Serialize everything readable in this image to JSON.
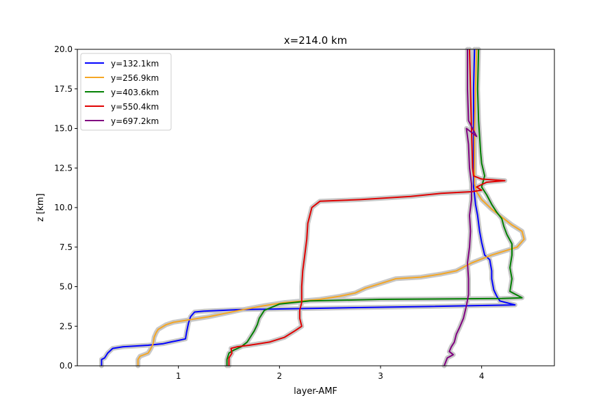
{
  "chart_data": {
    "type": "line",
    "title": "x=214.0 km",
    "xlabel": "layer-AMF",
    "ylabel": "z [km]",
    "xlim": [
      0.0,
      4.72
    ],
    "ylim": [
      0.0,
      20.0
    ],
    "xticks": [
      1,
      2,
      3,
      4
    ],
    "xtick_labels": [
      "1",
      "2",
      "3",
      "4"
    ],
    "yticks": [
      0.0,
      2.5,
      5.0,
      7.5,
      10.0,
      12.5,
      15.0,
      17.5,
      20.0
    ],
    "ytick_labels": [
      "0.0",
      "2.5",
      "5.0",
      "7.5",
      "10.0",
      "12.5",
      "15.0",
      "17.5",
      "20.0"
    ],
    "grid": false,
    "legend_position": "upper-left",
    "uncertainty_band_color": "#c8c8c8",
    "series": [
      {
        "name": "y=132.1km",
        "color": "#0000ff",
        "points": [
          [
            0.24,
            0.0
          ],
          [
            0.24,
            0.4
          ],
          [
            0.27,
            0.5
          ],
          [
            0.3,
            0.8
          ],
          [
            0.35,
            1.1
          ],
          [
            0.45,
            1.2
          ],
          [
            0.7,
            1.3
          ],
          [
            0.85,
            1.4
          ],
          [
            0.92,
            1.5
          ],
          [
            1.0,
            1.6
          ],
          [
            1.07,
            1.7
          ],
          [
            1.08,
            2.1
          ],
          [
            1.1,
            2.7
          ],
          [
            1.12,
            3.1
          ],
          [
            1.16,
            3.4
          ],
          [
            1.25,
            3.45
          ],
          [
            1.6,
            3.55
          ],
          [
            2.5,
            3.65
          ],
          [
            3.5,
            3.75
          ],
          [
            4.33,
            3.85
          ],
          [
            4.18,
            4.1
          ],
          [
            4.15,
            4.4
          ],
          [
            4.12,
            4.8
          ],
          [
            4.1,
            5.5
          ],
          [
            4.1,
            6.0
          ],
          [
            4.08,
            6.7
          ],
          [
            4.03,
            7.0
          ],
          [
            4.0,
            7.8
          ],
          [
            3.98,
            8.5
          ],
          [
            3.96,
            9.5
          ],
          [
            3.94,
            10.2
          ],
          [
            3.93,
            10.8
          ],
          [
            3.92,
            11.3
          ],
          [
            3.92,
            12.5
          ],
          [
            3.92,
            15.0
          ],
          [
            3.92,
            17.5
          ],
          [
            3.93,
            20.0
          ]
        ]
      },
      {
        "name": "y=256.9km",
        "color": "#f5a623",
        "points": [
          [
            0.6,
            0.0
          ],
          [
            0.6,
            0.4
          ],
          [
            0.62,
            0.6
          ],
          [
            0.7,
            0.8
          ],
          [
            0.72,
            1.0
          ],
          [
            0.75,
            1.4
          ],
          [
            0.76,
            1.8
          ],
          [
            0.78,
            2.1
          ],
          [
            0.8,
            2.3
          ],
          [
            0.88,
            2.6
          ],
          [
            0.95,
            2.75
          ],
          [
            1.1,
            2.9
          ],
          [
            1.3,
            3.1
          ],
          [
            1.45,
            3.3
          ],
          [
            1.6,
            3.5
          ],
          [
            1.85,
            3.8
          ],
          [
            2.05,
            4.0
          ],
          [
            2.4,
            4.2
          ],
          [
            2.6,
            4.4
          ],
          [
            2.75,
            4.6
          ],
          [
            2.85,
            4.9
          ],
          [
            3.0,
            5.2
          ],
          [
            3.15,
            5.5
          ],
          [
            3.4,
            5.6
          ],
          [
            3.6,
            5.8
          ],
          [
            3.75,
            6.0
          ],
          [
            3.9,
            6.5
          ],
          [
            4.1,
            7.0
          ],
          [
            4.35,
            7.5
          ],
          [
            4.42,
            8.0
          ],
          [
            4.4,
            8.5
          ],
          [
            4.3,
            8.9
          ],
          [
            4.2,
            9.4
          ],
          [
            4.1,
            9.9
          ],
          [
            4.05,
            10.2
          ],
          [
            4.0,
            10.5
          ],
          [
            3.95,
            11.0
          ],
          [
            3.93,
            11.5
          ],
          [
            3.93,
            12.5
          ],
          [
            3.93,
            15.0
          ],
          [
            3.94,
            17.5
          ],
          [
            3.95,
            20.0
          ]
        ]
      },
      {
        "name": "y=403.6km",
        "color": "#008000",
        "points": [
          [
            1.48,
            0.0
          ],
          [
            1.48,
            0.4
          ],
          [
            1.5,
            0.8
          ],
          [
            1.55,
            1.0
          ],
          [
            1.62,
            1.2
          ],
          [
            1.68,
            1.5
          ],
          [
            1.72,
            1.9
          ],
          [
            1.75,
            2.2
          ],
          [
            1.78,
            2.6
          ],
          [
            1.8,
            3.0
          ],
          [
            1.85,
            3.5
          ],
          [
            2.0,
            3.9
          ],
          [
            2.3,
            4.1
          ],
          [
            3.0,
            4.2
          ],
          [
            4.2,
            4.25
          ],
          [
            4.4,
            4.3
          ],
          [
            4.28,
            4.7
          ],
          [
            4.3,
            5.5
          ],
          [
            4.28,
            6.2
          ],
          [
            4.3,
            7.0
          ],
          [
            4.3,
            7.7
          ],
          [
            4.25,
            8.3
          ],
          [
            4.22,
            8.8
          ],
          [
            4.2,
            9.3
          ],
          [
            4.15,
            9.7
          ],
          [
            4.1,
            10.2
          ],
          [
            4.05,
            10.8
          ],
          [
            4.0,
            11.3
          ],
          [
            4.03,
            12.0
          ],
          [
            4.0,
            12.8
          ],
          [
            3.99,
            13.5
          ],
          [
            3.98,
            14.5
          ],
          [
            3.97,
            15.5
          ],
          [
            3.96,
            17.5
          ],
          [
            3.97,
            20.0
          ]
        ]
      },
      {
        "name": "y=550.4km",
        "color": "#e00000",
        "points": [
          [
            1.5,
            0.0
          ],
          [
            1.5,
            0.5
          ],
          [
            1.53,
            0.8
          ],
          [
            1.52,
            1.1
          ],
          [
            1.58,
            1.2
          ],
          [
            1.7,
            1.3
          ],
          [
            1.9,
            1.5
          ],
          [
            2.05,
            1.8
          ],
          [
            2.15,
            2.2
          ],
          [
            2.22,
            2.5
          ],
          [
            2.2,
            3.0
          ],
          [
            2.2,
            3.5
          ],
          [
            2.22,
            4.0
          ],
          [
            2.22,
            5.0
          ],
          [
            2.23,
            6.0
          ],
          [
            2.25,
            7.0
          ],
          [
            2.27,
            8.0
          ],
          [
            2.28,
            9.0
          ],
          [
            2.32,
            10.0
          ],
          [
            2.4,
            10.4
          ],
          [
            2.8,
            10.5
          ],
          [
            3.3,
            10.7
          ],
          [
            3.6,
            10.9
          ],
          [
            3.9,
            11.0
          ],
          [
            4.0,
            11.1
          ],
          [
            3.95,
            11.3
          ],
          [
            4.05,
            11.6
          ],
          [
            4.23,
            11.7
          ],
          [
            4.0,
            11.8
          ],
          [
            3.92,
            12.0
          ],
          [
            3.91,
            12.5
          ],
          [
            3.9,
            15.0
          ],
          [
            3.89,
            17.5
          ],
          [
            3.88,
            20.0
          ]
        ]
      },
      {
        "name": "y=697.2km",
        "color": "#800080",
        "points": [
          [
            3.63,
            0.0
          ],
          [
            3.66,
            0.5
          ],
          [
            3.72,
            0.7
          ],
          [
            3.68,
            0.9
          ],
          [
            3.7,
            1.2
          ],
          [
            3.73,
            1.5
          ],
          [
            3.75,
            2.0
          ],
          [
            3.78,
            2.4
          ],
          [
            3.82,
            3.0
          ],
          [
            3.85,
            3.8
          ],
          [
            3.87,
            4.5
          ],
          [
            3.87,
            5.5
          ],
          [
            3.86,
            6.5
          ],
          [
            3.88,
            7.5
          ],
          [
            3.89,
            8.5
          ],
          [
            3.88,
            9.5
          ],
          [
            3.9,
            10.5
          ],
          [
            3.9,
            11.5
          ],
          [
            3.88,
            12.5
          ],
          [
            3.87,
            14.0
          ],
          [
            3.85,
            15.0
          ],
          [
            3.95,
            14.5
          ],
          [
            3.87,
            15.5
          ],
          [
            3.86,
            17.5
          ],
          [
            3.86,
            20.0
          ]
        ]
      }
    ]
  }
}
